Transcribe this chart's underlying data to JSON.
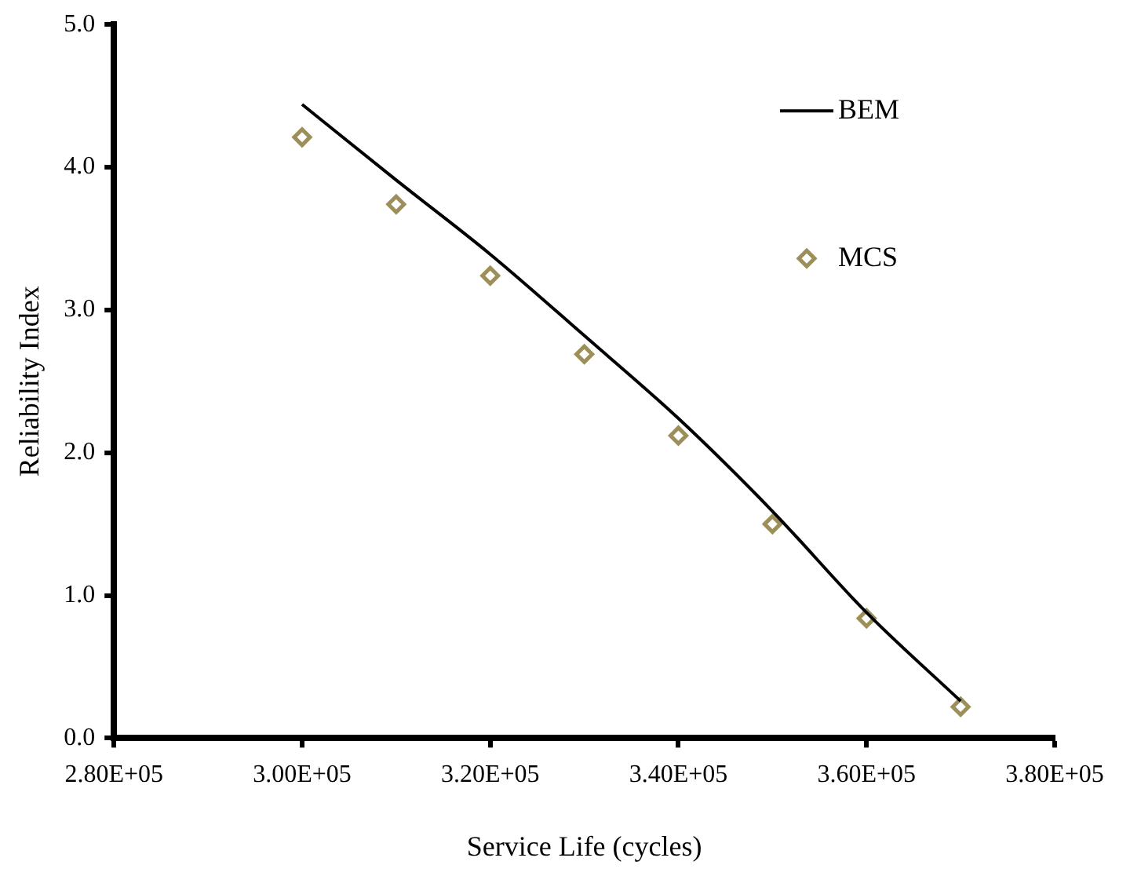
{
  "chart_data": {
    "type": "scatter",
    "xlabel": "Service Life (cycles)",
    "ylabel": "Reliability Index",
    "xlim": [
      280000,
      380000
    ],
    "xticks": [
      {
        "value": 280000,
        "label": "2.80E+05"
      },
      {
        "value": 300000,
        "label": "3.00E+05"
      },
      {
        "value": 320000,
        "label": "3.20E+05"
      },
      {
        "value": 340000,
        "label": "3.40E+05"
      },
      {
        "value": 360000,
        "label": "3.60E+05"
      },
      {
        "value": 380000,
        "label": "3.80E+05"
      }
    ],
    "ylim": [
      0,
      5
    ],
    "yticks": [
      {
        "value": 0,
        "label": "0.0"
      },
      {
        "value": 1,
        "label": "1.0"
      },
      {
        "value": 2,
        "label": "2.0"
      },
      {
        "value": 3,
        "label": "3.0"
      },
      {
        "value": 4,
        "label": "4.0"
      },
      {
        "value": 5,
        "label": "5.0"
      }
    ],
    "grid": false,
    "legend": "top right",
    "series": [
      {
        "name": "BEM",
        "type": "line",
        "color": "#000000",
        "marker": "none",
        "line_style": "solid",
        "x": [
          300000,
          310000,
          320000,
          330000,
          340000,
          350000,
          360000,
          370000
        ],
        "values": [
          4.44,
          3.91,
          3.39,
          2.82,
          2.24,
          1.59,
          0.88,
          0.26
        ]
      },
      {
        "name": "MCS",
        "type": "scatter",
        "color": "#9c8f5a",
        "marker": "diamond",
        "x": [
          300000,
          310000,
          320000,
          330000,
          340000,
          350000,
          360000,
          370000
        ],
        "values": [
          4.21,
          3.74,
          3.24,
          2.69,
          2.12,
          1.5,
          0.84,
          0.22
        ]
      }
    ]
  }
}
